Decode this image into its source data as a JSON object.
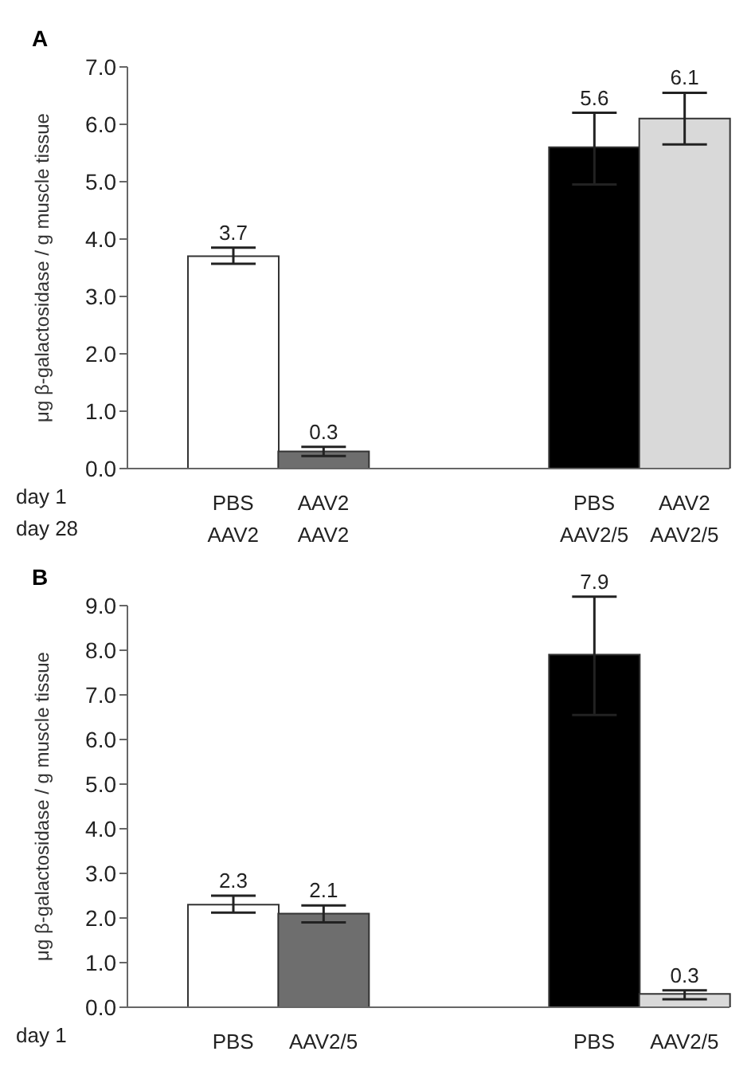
{
  "chart_data": [
    {
      "type": "bar",
      "title": "A",
      "ylabel": "μg β-galactosidase / g muscle tissue",
      "categories": [
        "PBS\nAAV2",
        "AAV2\nAAV2",
        null,
        null,
        "PBS\nAAV2/5",
        "AAV2\nAAV2/5"
      ],
      "values": [
        3.7,
        0.3,
        null,
        null,
        5.6,
        6.1
      ],
      "colors": [
        "#ffffff",
        "#6e6e6e",
        "#ffffff",
        "#ffffff",
        "#000000",
        "#d9d9d9"
      ],
      "errors": [
        [
          3.57,
          3.85
        ],
        [
          0.22,
          0.38
        ],
        null,
        null,
        [
          4.95,
          6.2
        ],
        [
          5.65,
          6.55
        ]
      ],
      "data_labels": true,
      "ylim": [
        0,
        7
      ],
      "yticks": [
        {
          "value": 0,
          "label": "0.0"
        },
        {
          "value": 1,
          "label": "1.0"
        },
        {
          "value": 2,
          "label": "2.0"
        },
        {
          "value": 3,
          "label": "3.0"
        },
        {
          "value": 4,
          "label": "4.0"
        },
        {
          "value": 5,
          "label": "5.0"
        },
        {
          "value": 6,
          "label": "6.0"
        },
        {
          "value": 7,
          "label": "7.0"
        }
      ],
      "grid": false,
      "legend": false,
      "annotations": [
        "day 1",
        "day 28"
      ]
    },
    {
      "type": "bar",
      "title": "B",
      "ylabel": "μg β-galactosidase / g muscle tissue",
      "categories": [
        "PBS",
        "AAV2/5",
        null,
        null,
        "PBS",
        "AAV2/5"
      ],
      "values": [
        2.3,
        2.1,
        null,
        null,
        7.9,
        0.3
      ],
      "colors": [
        "#ffffff",
        "#6e6e6e",
        "#ffffff",
        "#ffffff",
        "#000000",
        "#d9d9d9"
      ],
      "errors": [
        [
          2.12,
          2.5
        ],
        [
          1.9,
          2.28
        ],
        null,
        null,
        [
          6.55,
          9.2
        ],
        [
          0.18,
          0.38
        ]
      ],
      "data_labels": true,
      "ylim": [
        0,
        9
      ],
      "yticks": [
        {
          "value": 0,
          "label": "0.0"
        },
        {
          "value": 1,
          "label": "1.0"
        },
        {
          "value": 2,
          "label": "2.0"
        },
        {
          "value": 3,
          "label": "3.0"
        },
        {
          "value": 4,
          "label": "4.0"
        },
        {
          "value": 5,
          "label": "5.0"
        },
        {
          "value": 6,
          "label": "6.0"
        },
        {
          "value": 7,
          "label": "7.0"
        },
        {
          "value": 8,
          "label": "8.0"
        },
        {
          "value": 9,
          "label": "9.0"
        }
      ],
      "grid": false,
      "legend": false,
      "annotations": [
        "day 1"
      ]
    }
  ]
}
